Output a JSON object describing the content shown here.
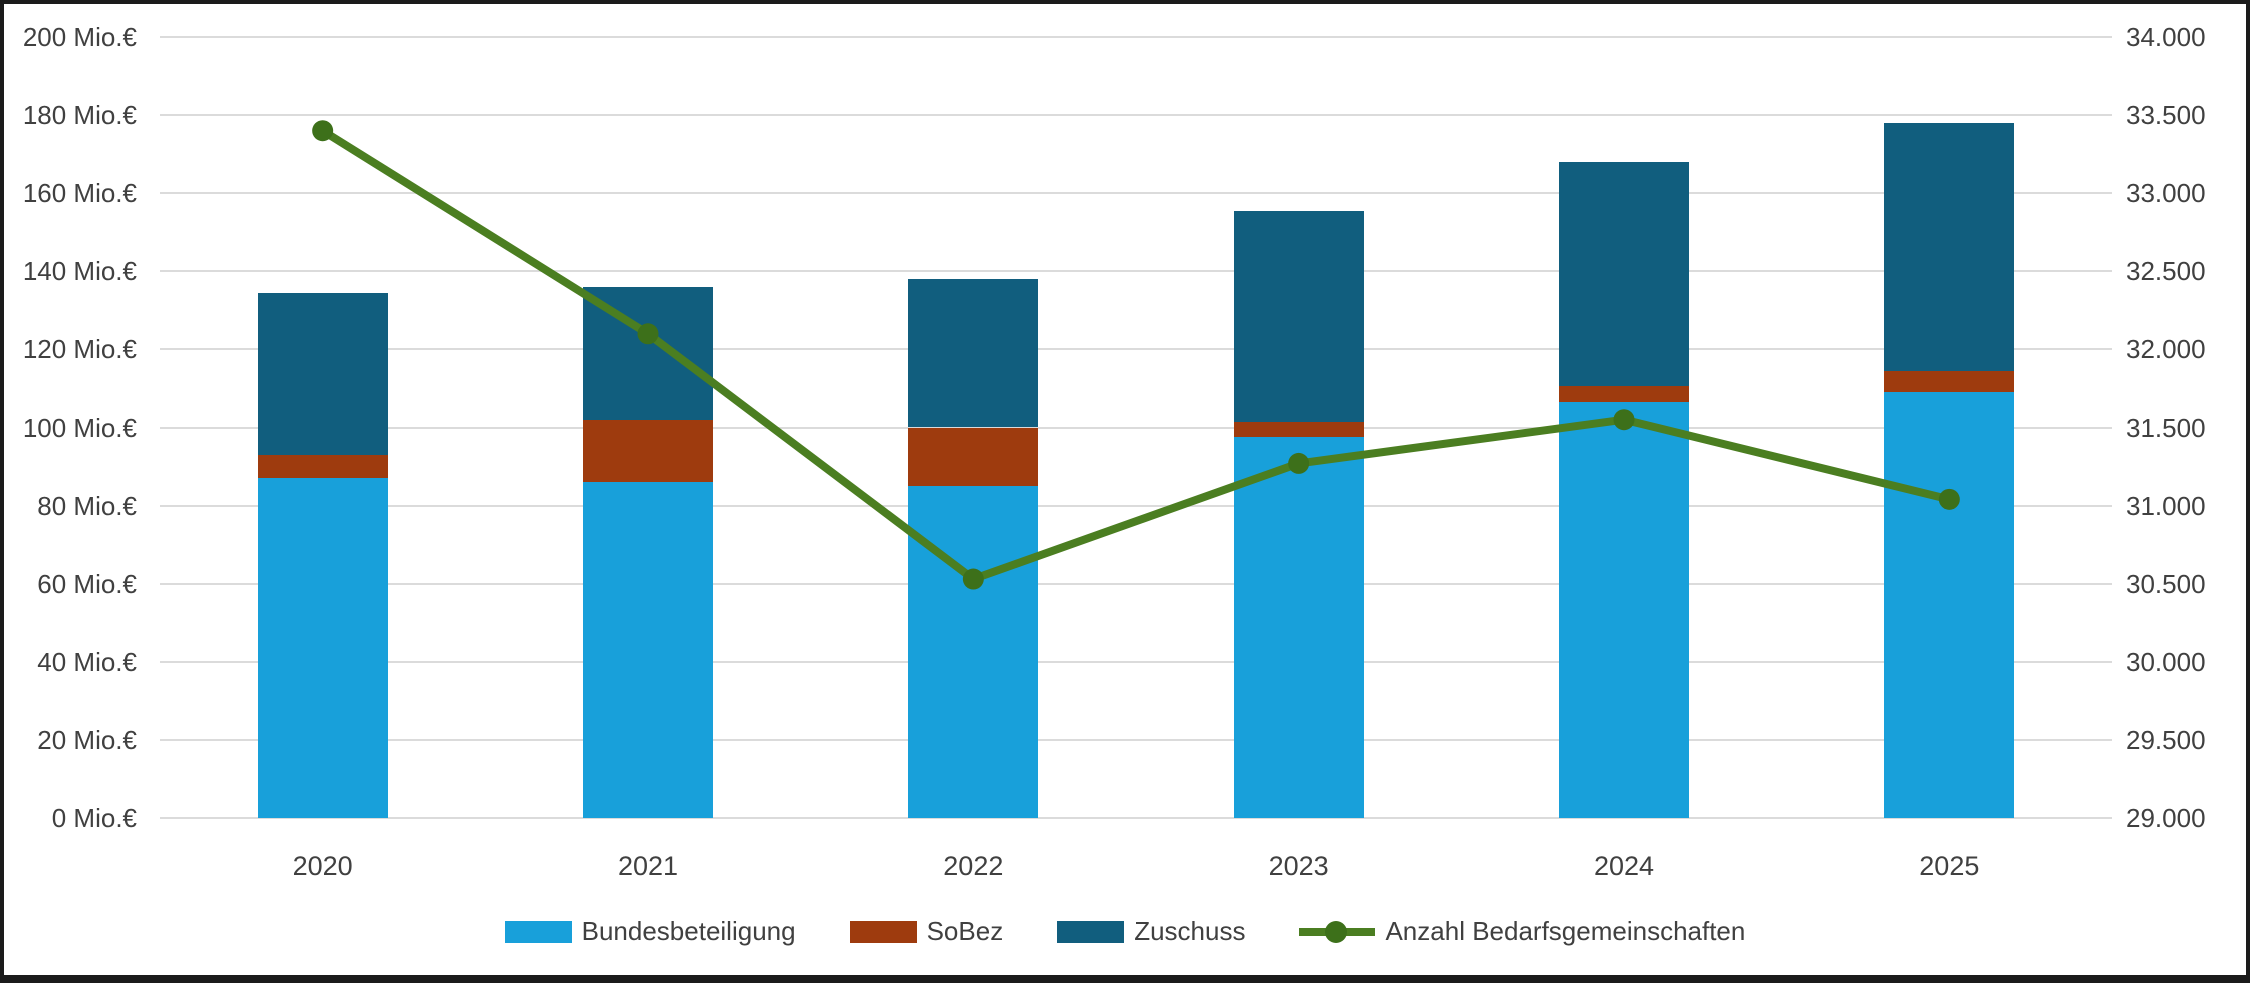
{
  "frame": {
    "background": "#ffffff",
    "border_color": "#1b1b1b"
  },
  "chart_data": {
    "type": "combo-stacked-bar-line",
    "title": "",
    "categories": [
      "2020",
      "2021",
      "2022",
      "2023",
      "2024",
      "2025"
    ],
    "bar_series": [
      {
        "name": "Bundesbeteiligung",
        "color": "#18A0DA",
        "values": [
          87,
          86,
          85,
          97.5,
          106.5,
          109
        ]
      },
      {
        "name": "SoBez",
        "color": "#9E3B0E",
        "values": [
          6,
          16,
          15,
          4,
          4,
          5.5
        ]
      },
      {
        "name": "Zuschuss",
        "color": "#115E7E",
        "values": [
          41.5,
          34,
          38,
          54,
          57.5,
          63.5
        ]
      }
    ],
    "bar_totals": [
      134.5,
      136,
      138,
      155.5,
      168,
      178
    ],
    "line_series": {
      "name": "Anzahl Bedarfsgemeinschaften",
      "color": "#4B7E21",
      "marker_color": "#3D701A",
      "values": [
        33400,
        32100,
        30530,
        31270,
        31550,
        31040
      ]
    },
    "left_axis": {
      "min": 0,
      "max": 200,
      "step": 20,
      "unit_suffix": " Mio.€",
      "values": [
        0,
        20,
        40,
        60,
        80,
        100,
        120,
        140,
        160,
        180,
        200
      ],
      "labels": [
        "0 Mio.€",
        "20 Mio.€",
        "40 Mio.€",
        "60 Mio.€",
        "80 Mio.€",
        "100 Mio.€",
        "120 Mio.€",
        "140 Mio.€",
        "160 Mio.€",
        "180 Mio.€",
        "200 Mio.€"
      ]
    },
    "right_axis": {
      "min": 29000,
      "max": 34000,
      "step": 500,
      "values": [
        29000,
        29500,
        30000,
        30500,
        31000,
        31500,
        32000,
        32500,
        33000,
        33500,
        34000
      ],
      "labels": [
        "29.000",
        "29.500",
        "30.000",
        "30.500",
        "31.000",
        "31.500",
        "32.000",
        "32.500",
        "33.000",
        "33.500",
        "34.000"
      ]
    },
    "legend": [
      {
        "type": "swatch",
        "label": "Bundesbeteiligung",
        "color": "#18A0DA"
      },
      {
        "type": "swatch",
        "label": "SoBez",
        "color": "#9E3B0E"
      },
      {
        "type": "swatch",
        "label": "Zuschuss",
        "color": "#115E7E"
      },
      {
        "type": "line-marker",
        "label": "Anzahl Bedarfsgemeinschaften",
        "color": "#4B7E21",
        "marker_color": "#3D701A"
      }
    ],
    "grid_on": true,
    "grid_color": "#DBDBDB",
    "text_color": "#404040",
    "legend_position": "bottom-center"
  }
}
